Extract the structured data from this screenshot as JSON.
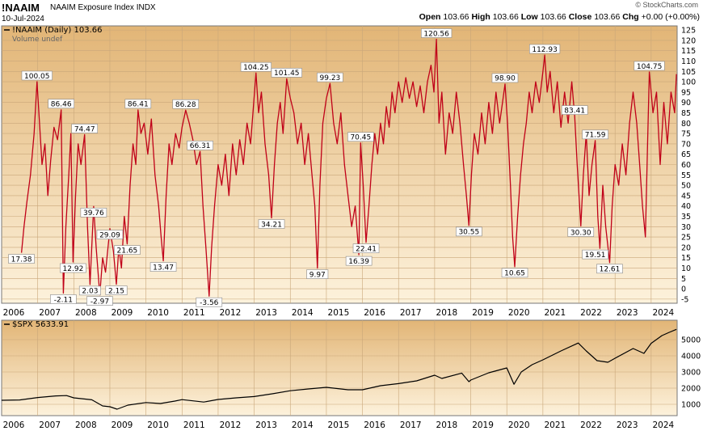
{
  "header": {
    "symbol": "!NAAIM",
    "name": "NAAIM Exposure Index INDX",
    "date": "10-Jul-2024",
    "watermark": "© StockCharts.com",
    "open_label": "Open",
    "open": "103.66",
    "high_label": "High",
    "high": "103.66",
    "low_label": "Low",
    "low": "103.66",
    "close_label": "Close",
    "close": "103.66",
    "chg_label": "Chg",
    "chg": "+0.00 (+0.00%)"
  },
  "chart_data": [
    {
      "type": "line",
      "legend": [
        "!NAAIM (Daily) 103.66",
        "Volume undef"
      ],
      "ylim": [
        -7,
        127
      ],
      "yticks": [
        -5,
        0,
        5,
        10,
        15,
        20,
        25,
        30,
        35,
        40,
        45,
        50,
        55,
        60,
        65,
        70,
        75,
        80,
        85,
        90,
        95,
        100,
        105,
        110,
        115,
        120,
        125
      ],
      "xlim": [
        2006.0,
        2024.72
      ],
      "xticks": [
        "2006",
        "2007",
        "2008",
        "2009",
        "2010",
        "2011",
        "2012",
        "2013",
        "2014",
        "2015",
        "2016",
        "2017",
        "2018",
        "2019",
        "2020",
        "2021",
        "2022",
        "2023",
        "2024"
      ],
      "series_color": "#c00018",
      "annotations": [
        {
          "x": 2006.55,
          "y": 17.38,
          "text": "17.38"
        },
        {
          "x": 2006.98,
          "y": 100.05,
          "text": "100.05"
        },
        {
          "x": 2007.65,
          "y": 86.46,
          "text": "86.46"
        },
        {
          "x": 2007.71,
          "y": -2.11,
          "text": "-2.11"
        },
        {
          "x": 2007.98,
          "y": 12.92,
          "text": "12.92"
        },
        {
          "x": 2008.3,
          "y": 74.47,
          "text": "74.47"
        },
        {
          "x": 2008.45,
          "y": 2.03,
          "text": "2.03"
        },
        {
          "x": 2008.55,
          "y": 39.76,
          "text": "39.76"
        },
        {
          "x": 2008.72,
          "y": -2.97,
          "text": "-2.97"
        },
        {
          "x": 2009.0,
          "y": 29.09,
          "text": "29.09"
        },
        {
          "x": 2009.18,
          "y": 2.15,
          "text": "2.15"
        },
        {
          "x": 2009.48,
          "y": 21.65,
          "text": "21.65"
        },
        {
          "x": 2009.78,
          "y": 86.41,
          "text": "86.41"
        },
        {
          "x": 2010.48,
          "y": 13.47,
          "text": "13.47"
        },
        {
          "x": 2011.1,
          "y": 86.28,
          "text": "86.28"
        },
        {
          "x": 2011.5,
          "y": 66.31,
          "text": "66.31"
        },
        {
          "x": 2011.75,
          "y": -3.56,
          "text": "-3.56"
        },
        {
          "x": 2013.05,
          "y": 104.25,
          "text": "104.25"
        },
        {
          "x": 2013.48,
          "y": 34.21,
          "text": "34.21"
        },
        {
          "x": 2013.9,
          "y": 101.45,
          "text": "101.45"
        },
        {
          "x": 2014.75,
          "y": 9.97,
          "text": "9.97"
        },
        {
          "x": 2015.1,
          "y": 99.23,
          "text": "99.23"
        },
        {
          "x": 2015.9,
          "y": 16.39,
          "text": "16.39"
        },
        {
          "x": 2016.1,
          "y": 22.41,
          "text": "22.41"
        },
        {
          "x": 2015.95,
          "y": 70.45,
          "text": "70.45"
        },
        {
          "x": 2018.05,
          "y": 120.56,
          "text": "120.56"
        },
        {
          "x": 2018.95,
          "y": 30.55,
          "text": "30.55"
        },
        {
          "x": 2019.95,
          "y": 98.9,
          "text": "98.90"
        },
        {
          "x": 2020.22,
          "y": 10.65,
          "text": "10.65"
        },
        {
          "x": 2021.05,
          "y": 112.93,
          "text": "112.93"
        },
        {
          "x": 2021.88,
          "y": 83.41,
          "text": "83.41"
        },
        {
          "x": 2022.05,
          "y": 30.3,
          "text": "30.30"
        },
        {
          "x": 2022.45,
          "y": 71.59,
          "text": "71.59"
        },
        {
          "x": 2022.45,
          "y": 19.51,
          "text": "19.51"
        },
        {
          "x": 2022.85,
          "y": 12.61,
          "text": "12.61"
        },
        {
          "x": 2023.95,
          "y": 104.75,
          "text": "104.75"
        }
      ],
      "points": [
        [
          2006.55,
          17.38
        ],
        [
          2006.62,
          30
        ],
        [
          2006.7,
          42
        ],
        [
          2006.8,
          55
        ],
        [
          2006.9,
          75
        ],
        [
          2006.98,
          100.05
        ],
        [
          2007.05,
          80
        ],
        [
          2007.12,
          60
        ],
        [
          2007.2,
          70
        ],
        [
          2007.28,
          45
        ],
        [
          2007.36,
          62
        ],
        [
          2007.45,
          78
        ],
        [
          2007.55,
          72
        ],
        [
          2007.65,
          86.46
        ],
        [
          2007.71,
          -2.11
        ],
        [
          2007.78,
          30
        ],
        [
          2007.86,
          55
        ],
        [
          2007.92,
          75
        ],
        [
          2007.98,
          12.92
        ],
        [
          2008.05,
          45
        ],
        [
          2008.12,
          70
        ],
        [
          2008.2,
          60
        ],
        [
          2008.3,
          74.47
        ],
        [
          2008.38,
          30
        ],
        [
          2008.45,
          2.03
        ],
        [
          2008.55,
          39.76
        ],
        [
          2008.62,
          20
        ],
        [
          2008.72,
          -2.97
        ],
        [
          2008.8,
          15
        ],
        [
          2008.88,
          8
        ],
        [
          2009.0,
          29.09
        ],
        [
          2009.1,
          18
        ],
        [
          2009.18,
          2.15
        ],
        [
          2009.25,
          20
        ],
        [
          2009.32,
          10
        ],
        [
          2009.4,
          35
        ],
        [
          2009.48,
          21.65
        ],
        [
          2009.56,
          50
        ],
        [
          2009.64,
          70
        ],
        [
          2009.72,
          60
        ],
        [
          2009.78,
          86.41
        ],
        [
          2009.86,
          75
        ],
        [
          2009.95,
          80
        ],
        [
          2010.05,
          65
        ],
        [
          2010.15,
          82
        ],
        [
          2010.25,
          55
        ],
        [
          2010.35,
          40
        ],
        [
          2010.42,
          25
        ],
        [
          2010.48,
          13.47
        ],
        [
          2010.56,
          45
        ],
        [
          2010.64,
          70
        ],
        [
          2010.72,
          60
        ],
        [
          2010.82,
          75
        ],
        [
          2010.92,
          68
        ],
        [
          2011.0,
          78
        ],
        [
          2011.1,
          86.28
        ],
        [
          2011.2,
          80
        ],
        [
          2011.3,
          72
        ],
        [
          2011.4,
          60
        ],
        [
          2011.5,
          66.31
        ],
        [
          2011.58,
          40
        ],
        [
          2011.66,
          20
        ],
        [
          2011.75,
          -3.56
        ],
        [
          2011.82,
          20
        ],
        [
          2011.9,
          40
        ],
        [
          2012.0,
          60
        ],
        [
          2012.1,
          50
        ],
        [
          2012.2,
          65
        ],
        [
          2012.3,
          45
        ],
        [
          2012.4,
          70
        ],
        [
          2012.5,
          55
        ],
        [
          2012.6,
          72
        ],
        [
          2012.7,
          60
        ],
        [
          2012.8,
          80
        ],
        [
          2012.9,
          70
        ],
        [
          2013.05,
          104.25
        ],
        [
          2013.12,
          85
        ],
        [
          2013.2,
          95
        ],
        [
          2013.3,
          70
        ],
        [
          2013.4,
          55
        ],
        [
          2013.48,
          34.21
        ],
        [
          2013.56,
          60
        ],
        [
          2013.64,
          80
        ],
        [
          2013.72,
          90
        ],
        [
          2013.8,
          75
        ],
        [
          2013.9,
          101.45
        ],
        [
          2014.0,
          92
        ],
        [
          2014.1,
          85
        ],
        [
          2014.2,
          70
        ],
        [
          2014.3,
          80
        ],
        [
          2014.4,
          60
        ],
        [
          2014.5,
          75
        ],
        [
          2014.6,
          55
        ],
        [
          2014.68,
          40
        ],
        [
          2014.75,
          9.97
        ],
        [
          2014.82,
          50
        ],
        [
          2014.9,
          80
        ],
        [
          2015.0,
          92
        ],
        [
          2015.1,
          99.23
        ],
        [
          2015.2,
          80
        ],
        [
          2015.3,
          70
        ],
        [
          2015.4,
          85
        ],
        [
          2015.5,
          60
        ],
        [
          2015.6,
          45
        ],
        [
          2015.7,
          30
        ],
        [
          2015.8,
          40
        ],
        [
          2015.9,
          16.39
        ],
        [
          2015.95,
          70.45
        ],
        [
          2016.02,
          50
        ],
        [
          2016.1,
          22.41
        ],
        [
          2016.18,
          40
        ],
        [
          2016.26,
          60
        ],
        [
          2016.34,
          75
        ],
        [
          2016.42,
          65
        ],
        [
          2016.5,
          80
        ],
        [
          2016.58,
          70
        ],
        [
          2016.66,
          88
        ],
        [
          2016.74,
          78
        ],
        [
          2016.82,
          95
        ],
        [
          2016.9,
          85
        ],
        [
          2017.0,
          100
        ],
        [
          2017.1,
          90
        ],
        [
          2017.2,
          102
        ],
        [
          2017.3,
          92
        ],
        [
          2017.4,
          100
        ],
        [
          2017.5,
          88
        ],
        [
          2017.6,
          98
        ],
        [
          2017.7,
          85
        ],
        [
          2017.8,
          100
        ],
        [
          2017.9,
          108
        ],
        [
          2017.98,
          95
        ],
        [
          2018.05,
          120.56
        ],
        [
          2018.12,
          80
        ],
        [
          2018.2,
          95
        ],
        [
          2018.3,
          65
        ],
        [
          2018.4,
          85
        ],
        [
          2018.5,
          75
        ],
        [
          2018.6,
          95
        ],
        [
          2018.7,
          80
        ],
        [
          2018.8,
          60
        ],
        [
          2018.88,
          45
        ],
        [
          2018.95,
          30.55
        ],
        [
          2019.02,
          55
        ],
        [
          2019.1,
          75
        ],
        [
          2019.2,
          65
        ],
        [
          2019.3,
          85
        ],
        [
          2019.4,
          70
        ],
        [
          2019.5,
          90
        ],
        [
          2019.6,
          75
        ],
        [
          2019.7,
          95
        ],
        [
          2019.8,
          80
        ],
        [
          2019.88,
          90
        ],
        [
          2019.95,
          98.9
        ],
        [
          2020.02,
          80
        ],
        [
          2020.1,
          50
        ],
        [
          2020.16,
          25
        ],
        [
          2020.22,
          10.65
        ],
        [
          2020.3,
          35
        ],
        [
          2020.38,
          55
        ],
        [
          2020.46,
          70
        ],
        [
          2020.54,
          80
        ],
        [
          2020.62,
          95
        ],
        [
          2020.7,
          85
        ],
        [
          2020.8,
          100
        ],
        [
          2020.9,
          90
        ],
        [
          2021.0,
          105
        ],
        [
          2021.05,
          112.93
        ],
        [
          2021.12,
          95
        ],
        [
          2021.2,
          105
        ],
        [
          2021.3,
          85
        ],
        [
          2021.4,
          100
        ],
        [
          2021.5,
          78
        ],
        [
          2021.6,
          95
        ],
        [
          2021.7,
          80
        ],
        [
          2021.8,
          100
        ],
        [
          2021.88,
          83.41
        ],
        [
          2021.95,
          60
        ],
        [
          2022.05,
          30.3
        ],
        [
          2022.12,
          55
        ],
        [
          2022.2,
          75
        ],
        [
          2022.28,
          45
        ],
        [
          2022.36,
          60
        ],
        [
          2022.45,
          71.59
        ],
        [
          2022.52,
          35
        ],
        [
          2022.58,
          19.51
        ],
        [
          2022.66,
          50
        ],
        [
          2022.74,
          30
        ],
        [
          2022.85,
          12.61
        ],
        [
          2022.92,
          40
        ],
        [
          2023.0,
          60
        ],
        [
          2023.1,
          50
        ],
        [
          2023.2,
          70
        ],
        [
          2023.3,
          55
        ],
        [
          2023.4,
          80
        ],
        [
          2023.5,
          95
        ],
        [
          2023.6,
          80
        ],
        [
          2023.68,
          60
        ],
        [
          2023.76,
          40
        ],
        [
          2023.84,
          25
        ],
        [
          2023.9,
          70
        ],
        [
          2023.95,
          104.75
        ],
        [
          2024.05,
          85
        ],
        [
          2024.15,
          95
        ],
        [
          2024.25,
          60
        ],
        [
          2024.35,
          90
        ],
        [
          2024.45,
          70
        ],
        [
          2024.55,
          95
        ],
        [
          2024.65,
          85
        ],
        [
          2024.7,
          103.66
        ]
      ]
    },
    {
      "type": "line",
      "legend": [
        "$SPX 5633.91"
      ],
      "ylim": [
        300,
        6200
      ],
      "yticks": [
        1000,
        2000,
        3000,
        4000,
        5000
      ],
      "xlim": [
        2006.0,
        2024.72
      ],
      "xticks": [
        "2006",
        "2007",
        "2008",
        "2009",
        "2010",
        "2011",
        "2012",
        "2013",
        "2014",
        "2015",
        "2016",
        "2017",
        "2018",
        "2019",
        "2020",
        "2021",
        "2022",
        "2023",
        "2024"
      ],
      "series_color": "#000000",
      "points": [
        [
          2006.0,
          1250
        ],
        [
          2006.5,
          1270
        ],
        [
          2007.0,
          1420
        ],
        [
          2007.5,
          1520
        ],
        [
          2007.8,
          1540
        ],
        [
          2008.0,
          1400
        ],
        [
          2008.5,
          1280
        ],
        [
          2008.8,
          900
        ],
        [
          2009.0,
          850
        ],
        [
          2009.2,
          700
        ],
        [
          2009.5,
          950
        ],
        [
          2010.0,
          1110
        ],
        [
          2010.4,
          1050
        ],
        [
          2010.8,
          1200
        ],
        [
          2011.0,
          1290
        ],
        [
          2011.6,
          1140
        ],
        [
          2012.0,
          1300
        ],
        [
          2012.5,
          1400
        ],
        [
          2013.0,
          1480
        ],
        [
          2013.5,
          1650
        ],
        [
          2014.0,
          1840
        ],
        [
          2014.5,
          1950
        ],
        [
          2015.0,
          2050
        ],
        [
          2015.6,
          1900
        ],
        [
          2016.0,
          1900
        ],
        [
          2016.5,
          2150
        ],
        [
          2017.0,
          2280
        ],
        [
          2017.5,
          2450
        ],
        [
          2018.0,
          2800
        ],
        [
          2018.2,
          2600
        ],
        [
          2018.75,
          2930
        ],
        [
          2018.95,
          2400
        ],
        [
          2019.0,
          2500
        ],
        [
          2019.5,
          2950
        ],
        [
          2020.0,
          3250
        ],
        [
          2020.2,
          2240
        ],
        [
          2020.4,
          3000
        ],
        [
          2020.7,
          3450
        ],
        [
          2021.0,
          3750
        ],
        [
          2021.5,
          4300
        ],
        [
          2021.98,
          4790
        ],
        [
          2022.2,
          4300
        ],
        [
          2022.5,
          3700
        ],
        [
          2022.8,
          3600
        ],
        [
          2023.0,
          3850
        ],
        [
          2023.5,
          4450
        ],
        [
          2023.8,
          4150
        ],
        [
          2024.0,
          4770
        ],
        [
          2024.3,
          5250
        ],
        [
          2024.5,
          5450
        ],
        [
          2024.7,
          5633.91
        ]
      ]
    }
  ]
}
